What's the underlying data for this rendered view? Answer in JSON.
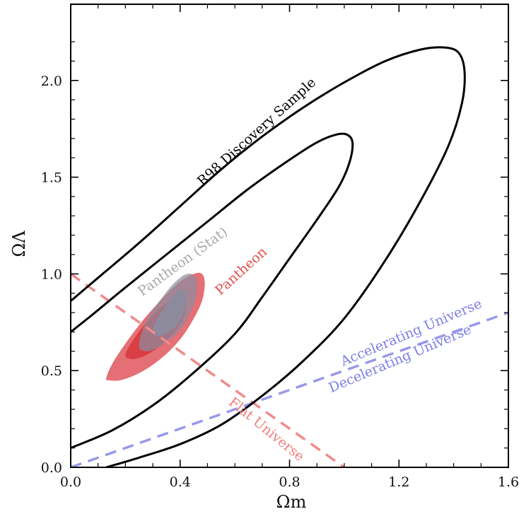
{
  "chart_data": {
    "type": "contour",
    "xlabel": "Ωm",
    "ylabel": "ΩΛ",
    "xlim": [
      0.0,
      1.6
    ],
    "ylim": [
      0.0,
      2.3
    ],
    "x_ticks": [
      "0.0",
      "0.4",
      "0.8",
      "1.2",
      "1.6"
    ],
    "y_ticks": [
      "0.0",
      "0.5",
      "1.0",
      "1.5",
      "2.0"
    ],
    "grid": false,
    "series": [
      {
        "name": "R98 Discovery Sample",
        "style": "outline",
        "color": "#000000",
        "contours": [
          {
            "level": "inner",
            "points": [
              [
                0.0,
                0.7
              ],
              [
                0.08,
                0.79
              ],
              [
                0.2,
                0.93
              ],
              [
                0.35,
                1.1
              ],
              [
                0.5,
                1.27
              ],
              [
                0.65,
                1.44
              ],
              [
                0.8,
                1.59
              ],
              [
                0.9,
                1.68
              ],
              [
                0.97,
                1.72
              ],
              [
                1.01,
                1.72
              ],
              [
                1.03,
                1.68
              ],
              [
                1.02,
                1.58
              ],
              [
                0.98,
                1.45
              ],
              [
                0.9,
                1.28
              ],
              [
                0.8,
                1.08
              ],
              [
                0.7,
                0.88
              ],
              [
                0.6,
                0.69
              ],
              [
                0.45,
                0.49
              ],
              [
                0.3,
                0.32
              ],
              [
                0.15,
                0.19
              ],
              [
                0.0,
                0.1
              ]
            ]
          },
          {
            "level": "outer",
            "points": [
              [
                0.0,
                0.86
              ],
              [
                0.1,
                0.98
              ],
              [
                0.25,
                1.16
              ],
              [
                0.4,
                1.35
              ],
              [
                0.55,
                1.54
              ],
              [
                0.7,
                1.71
              ],
              [
                0.85,
                1.86
              ],
              [
                1.0,
                1.99
              ],
              [
                1.15,
                2.1
              ],
              [
                1.28,
                2.16
              ],
              [
                1.37,
                2.17
              ],
              [
                1.42,
                2.14
              ],
              [
                1.44,
                2.04
              ],
              [
                1.43,
                1.88
              ],
              [
                1.38,
                1.66
              ],
              [
                1.28,
                1.38
              ],
              [
                1.15,
                1.07
              ],
              [
                1.0,
                0.77
              ],
              [
                0.85,
                0.55
              ],
              [
                0.7,
                0.37
              ],
              [
                0.55,
                0.22
              ],
              [
                0.4,
                0.12
              ],
              [
                0.25,
                0.05
              ],
              [
                0.13,
                0.0
              ]
            ]
          }
        ]
      },
      {
        "name": "Pantheon",
        "style": "filled",
        "color": "#d9383f",
        "contours": [
          {
            "level": "outer",
            "points": [
              [
                0.13,
                0.46
              ],
              [
                0.15,
                0.53
              ],
              [
                0.2,
                0.64
              ],
              [
                0.27,
                0.77
              ],
              [
                0.34,
                0.88
              ],
              [
                0.4,
                0.96
              ],
              [
                0.45,
                1.0
              ],
              [
                0.48,
                1.0
              ],
              [
                0.49,
                0.95
              ],
              [
                0.48,
                0.86
              ],
              [
                0.45,
                0.77
              ],
              [
                0.41,
                0.68
              ],
              [
                0.36,
                0.6
              ],
              [
                0.3,
                0.53
              ],
              [
                0.24,
                0.48
              ],
              [
                0.18,
                0.45
              ],
              [
                0.14,
                0.45
              ]
            ]
          },
          {
            "level": "inner",
            "points": [
              [
                0.2,
                0.58
              ],
              [
                0.22,
                0.64
              ],
              [
                0.26,
                0.72
              ],
              [
                0.31,
                0.8
              ],
              [
                0.36,
                0.86
              ],
              [
                0.4,
                0.9
              ],
              [
                0.42,
                0.88
              ],
              [
                0.42,
                0.81
              ],
              [
                0.4,
                0.74
              ],
              [
                0.36,
                0.67
              ],
              [
                0.31,
                0.61
              ],
              [
                0.26,
                0.57
              ],
              [
                0.22,
                0.56
              ]
            ]
          }
        ]
      },
      {
        "name": "Pantheon (Stat)",
        "style": "filled",
        "color": "#8c8ca0",
        "contours": [
          {
            "level": "outer",
            "points": [
              [
                0.25,
                0.62
              ],
              [
                0.26,
                0.7
              ],
              [
                0.29,
                0.79
              ],
              [
                0.33,
                0.87
              ],
              [
                0.37,
                0.94
              ],
              [
                0.41,
                0.99
              ],
              [
                0.44,
                1.0
              ],
              [
                0.46,
                0.97
              ],
              [
                0.46,
                0.89
              ],
              [
                0.44,
                0.81
              ],
              [
                0.41,
                0.73
              ],
              [
                0.37,
                0.67
              ],
              [
                0.32,
                0.62
              ],
              [
                0.28,
                0.6
              ]
            ]
          },
          {
            "level": "inner",
            "points": [
              [
                0.3,
                0.69
              ],
              [
                0.31,
                0.75
              ],
              [
                0.34,
                0.82
              ],
              [
                0.37,
                0.88
              ],
              [
                0.4,
                0.92
              ],
              [
                0.42,
                0.9
              ],
              [
                0.42,
                0.83
              ],
              [
                0.4,
                0.76
              ],
              [
                0.37,
                0.71
              ],
              [
                0.33,
                0.68
              ]
            ]
          }
        ]
      }
    ],
    "lines": [
      {
        "name": "Flat Universe",
        "color": "#f08a8a",
        "dash": true,
        "points": [
          [
            0.0,
            1.0
          ],
          [
            1.0,
            0.0
          ]
        ]
      },
      {
        "name": "Accelerating / Decelerating boundary",
        "color": "#9898ea",
        "dash": true,
        "points": [
          [
            0.0,
            0.0
          ],
          [
            1.6,
            0.8
          ]
        ]
      }
    ],
    "annotations": [
      {
        "text": "R98 Discovery Sample",
        "color": "#000000"
      },
      {
        "text": "Pantheon (Stat)",
        "color": "#a9a9a9"
      },
      {
        "text": "Pantheon",
        "color": "#e05050"
      },
      {
        "text": "Flat Universe",
        "color": "#f07c7c"
      },
      {
        "text": "Accelerating Universe",
        "color": "#7c7ce8"
      },
      {
        "text": "Decelerating Universe",
        "color": "#7c7ce8"
      }
    ]
  }
}
